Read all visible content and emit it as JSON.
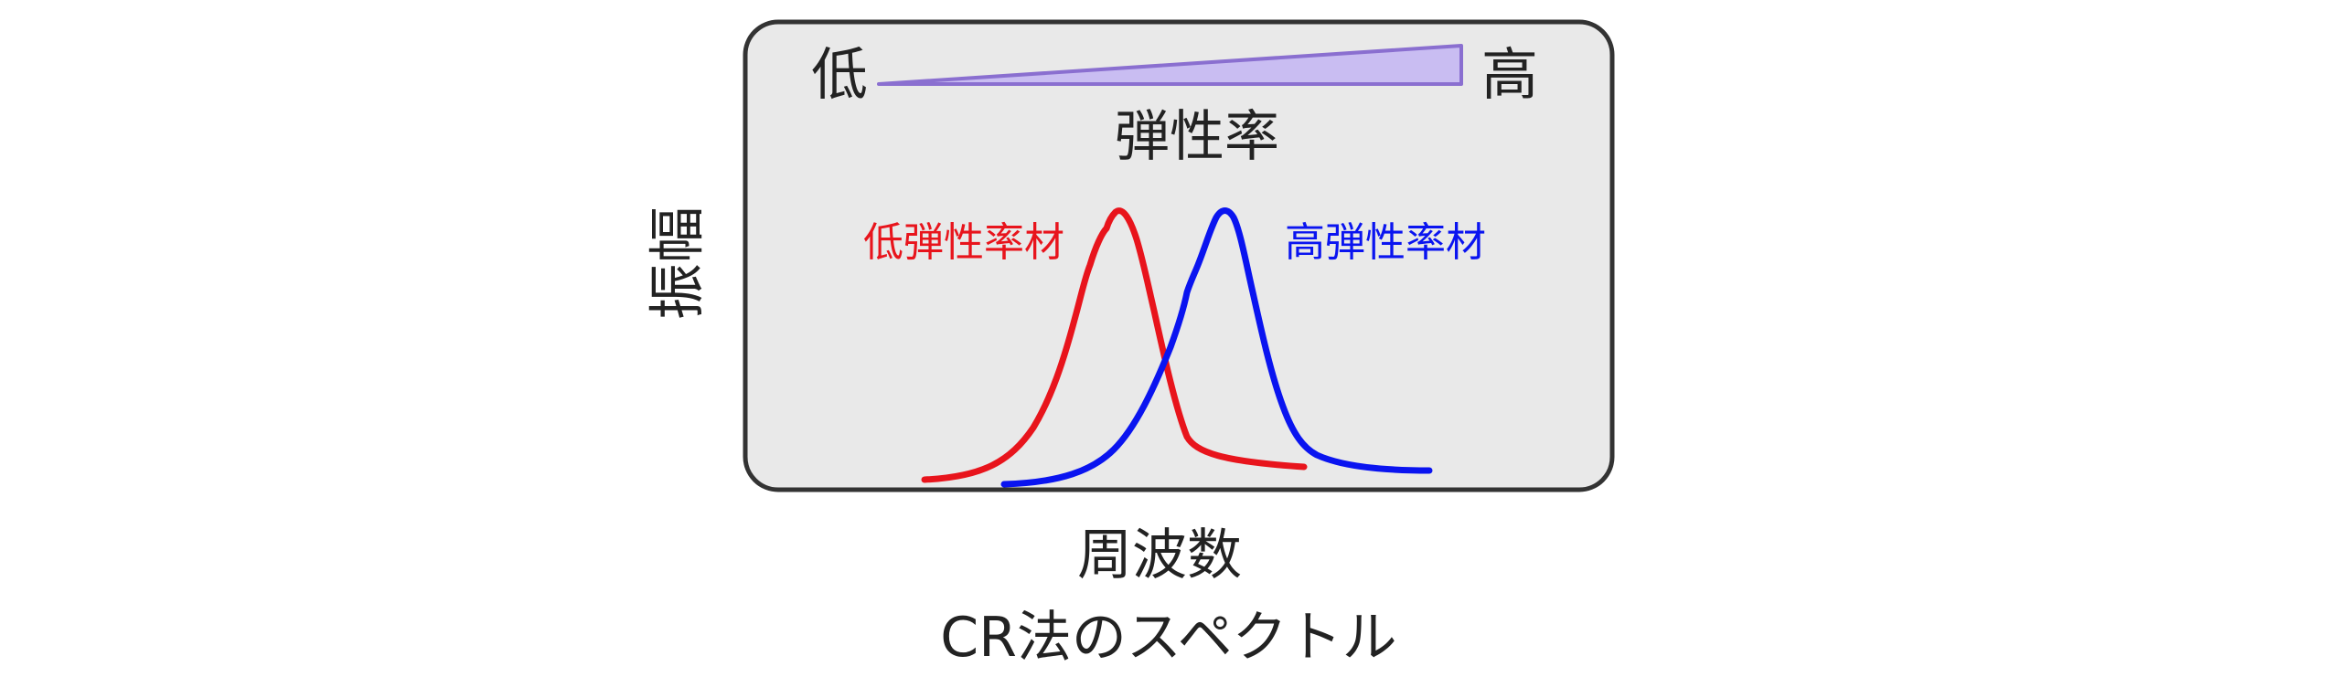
{
  "labels": {
    "low": "低",
    "high": "高",
    "elasticity": "弾性率",
    "y_axis": "振幅",
    "x_axis": "周波数",
    "caption": "CR法のスペクトル"
  },
  "series": [
    {
      "name": "低弾性率材",
      "color": "#e8141c"
    },
    {
      "name": "高弾性率材",
      "color": "#0a14f0"
    }
  ],
  "colors": {
    "panel_fill": "#e9e9e9",
    "panel_border": "#333333",
    "wedge_fill": "#c9bdf2",
    "wedge_stroke": "#8a6fd0"
  }
}
